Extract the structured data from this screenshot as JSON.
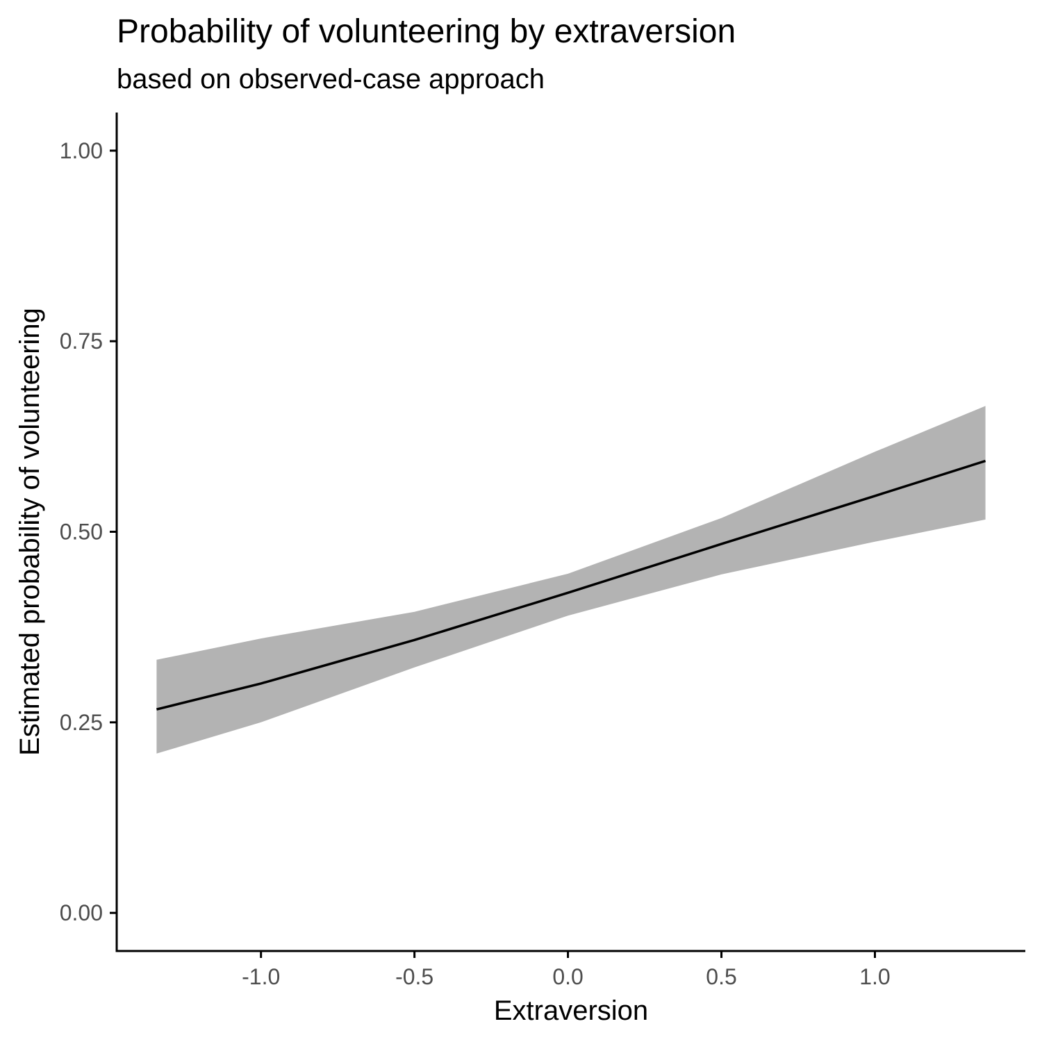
{
  "chart_data": {
    "type": "line",
    "title": "Probability of volunteering by extraversion",
    "subtitle": "based on observed-case approach",
    "xlabel": "Extraversion",
    "ylabel": "Estimated probability of volunteering",
    "xlim": [
      -1.47,
      1.49
    ],
    "ylim": [
      -0.05,
      1.05
    ],
    "xticks": [
      -1.0,
      -0.5,
      0.0,
      0.5,
      1.0
    ],
    "xtick_labels": [
      "-1.0",
      "-0.5",
      "0.0",
      "0.5",
      "1.0"
    ],
    "yticks": [
      0.0,
      0.25,
      0.5,
      0.75,
      1.0
    ],
    "ytick_labels": [
      "0.00",
      "0.25",
      "0.50",
      "0.75",
      "1.00"
    ],
    "grid": false,
    "legend": "none",
    "series": [
      {
        "x": [
          -1.34,
          -1.0,
          -0.5,
          0.0,
          0.5,
          1.0,
          1.36
        ],
        "y": [
          0.267,
          0.301,
          0.358,
          0.42,
          0.484,
          0.547,
          0.593
        ],
        "ci_lower": [
          0.209,
          0.25,
          0.322,
          0.39,
          0.444,
          0.487,
          0.516
        ],
        "ci_upper": [
          0.332,
          0.36,
          0.395,
          0.445,
          0.518,
          0.605,
          0.665
        ]
      }
    ],
    "colors": {
      "line": "#000000",
      "ribbon": "#b3b3b3",
      "axis": "#000000",
      "tick_text": "#4d4d4d"
    }
  }
}
